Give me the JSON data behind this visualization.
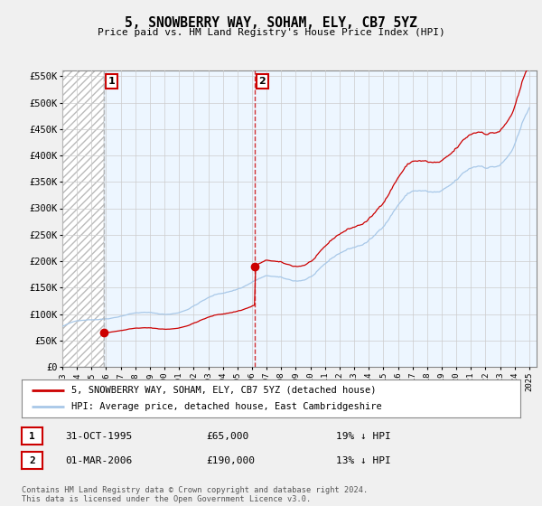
{
  "title": "5, SNOWBERRY WAY, SOHAM, ELY, CB7 5YZ",
  "subtitle": "Price paid vs. HM Land Registry's House Price Index (HPI)",
  "ylabel_ticks": [
    "£0",
    "£50K",
    "£100K",
    "£150K",
    "£200K",
    "£250K",
    "£300K",
    "£350K",
    "£400K",
    "£450K",
    "£500K",
    "£550K"
  ],
  "ytick_values": [
    0,
    50000,
    100000,
    150000,
    200000,
    250000,
    300000,
    350000,
    400000,
    450000,
    500000,
    550000
  ],
  "ylim": [
    0,
    560000
  ],
  "xlim_start": 1993.0,
  "xlim_end": 2025.5,
  "hpi_color": "#a8c8e8",
  "price_color": "#cc0000",
  "background_color": "#f0f0f0",
  "plot_bg_color": "#ffffff",
  "grid_color": "#cccccc",
  "transaction1_x": 1995.833,
  "transaction1_y": 65000,
  "transaction2_x": 2006.167,
  "transaction2_y": 190000,
  "vline1_color": "#aaaaaa",
  "vline2_color": "#cc0000",
  "shade_color": "#ddeeff",
  "hatch_color": "#cccccc",
  "legend_house_label": "5, SNOWBERRY WAY, SOHAM, ELY, CB7 5YZ (detached house)",
  "legend_hpi_label": "HPI: Average price, detached house, East Cambridgeshire",
  "table_row1": [
    "1",
    "31-OCT-1995",
    "£65,000",
    "19% ↓ HPI"
  ],
  "table_row2": [
    "2",
    "01-MAR-2006",
    "£190,000",
    "13% ↓ HPI"
  ],
  "footer": "Contains HM Land Registry data © Crown copyright and database right 2024.\nThis data is licensed under the Open Government Licence v3.0."
}
